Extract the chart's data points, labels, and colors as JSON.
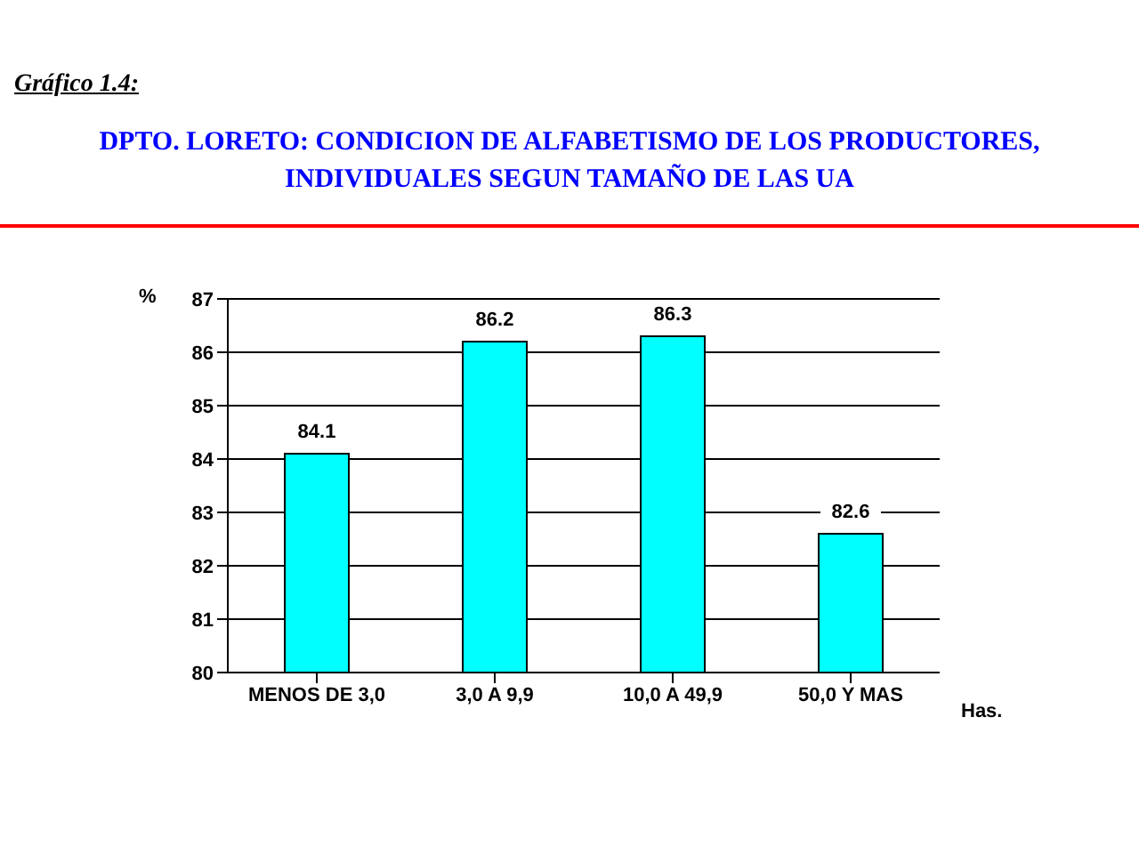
{
  "chart_data": {
    "type": "bar",
    "title": "DPTO. LORETO: CONDICION DE ALFABETISMO DE LOS PRODUCTORES, INDIVIDUALES SEGUN TAMAÑO DE LAS UA",
    "annotations": [
      "Gráfico 1.4:"
    ],
    "xlabel": "Has.",
    "ylabel": "%",
    "categories": [
      "MENOS DE 3,0",
      "3,0 A 9,9",
      "10,0 A 49,9",
      "50,0 Y MAS"
    ],
    "values": [
      84.1,
      86.2,
      86.3,
      82.6
    ],
    "color": "#00ffff",
    "ylim": [
      80,
      87
    ],
    "yticks": [
      80,
      81,
      82,
      83,
      84,
      85,
      86,
      87
    ],
    "grid": "y",
    "data_labels": true
  }
}
